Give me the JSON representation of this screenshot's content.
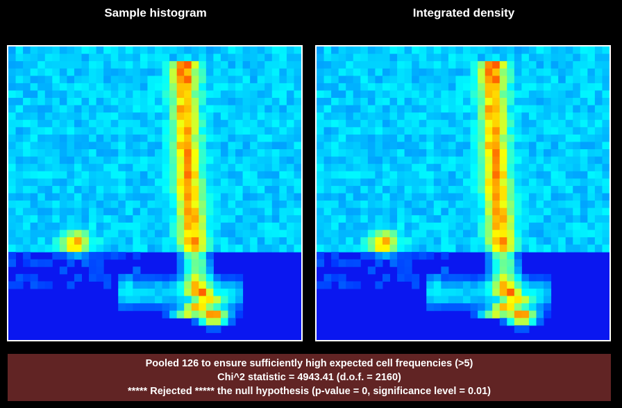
{
  "panels": [
    {
      "title": "Sample histogram"
    },
    {
      "title": "Integrated density"
    }
  ],
  "colors": {
    "background": "#000000",
    "plot_background": "#0a17f0",
    "result_box": "#612424",
    "text": "#ffffff"
  },
  "result": {
    "line1": "Pooled 126 to ensure sufficiently high expected cell frequencies (>5)",
    "line2": "Chi^2 statistic = 4943.41 (d.o.f. = 2160)",
    "line3": "***** Rejected ***** the null hypothesis (p-value = 0, significance level = 0.01)"
  }
}
